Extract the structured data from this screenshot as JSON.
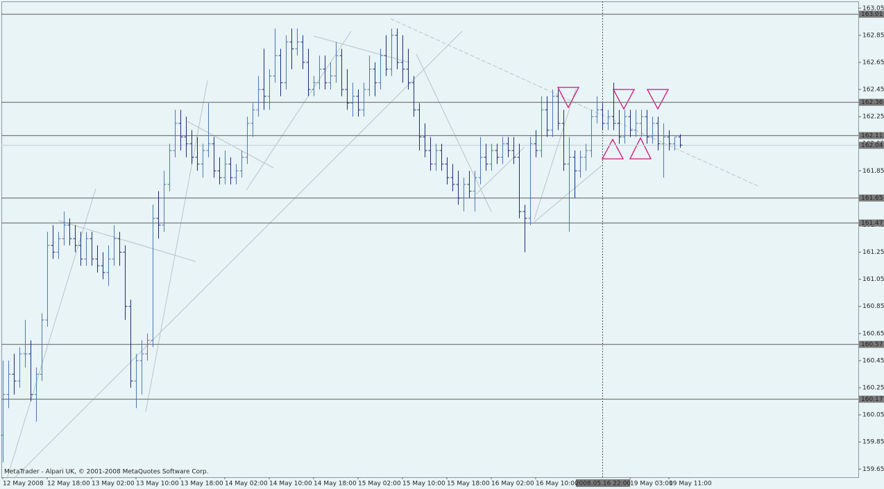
{
  "chart_data": {
    "type": "ohlc",
    "footer": "MetaTrader - Alpari UK, © 2001-2008 MetaQuotes Software Corp.",
    "categories": [
      "12 May 2008",
      null,
      null,
      null,
      null,
      null,
      null,
      null,
      "12 May 18:00",
      null,
      null,
      null,
      null,
      null,
      null,
      null,
      "13 May 02:00",
      null,
      null,
      null,
      null,
      null,
      null,
      null,
      "13 May 10:00",
      null,
      null,
      null,
      null,
      null,
      null,
      null,
      "13 May 18:00",
      null,
      null,
      null,
      null,
      null,
      null,
      null,
      "14 May 02:00",
      null,
      null,
      null,
      null,
      null,
      null,
      null,
      "14 May 10:00",
      null,
      null,
      null,
      null,
      null,
      null,
      null,
      "14 May 18:00",
      null,
      null,
      null,
      null,
      null,
      null,
      null,
      "15 May 02:00",
      null,
      null,
      null,
      null,
      null,
      null,
      null,
      "15 May 10:00",
      null,
      null,
      null,
      null,
      null,
      null,
      null,
      "15 May 18:00",
      null,
      null,
      null,
      null,
      null,
      null,
      null,
      "16 May 02:00",
      null,
      null,
      null,
      null,
      null,
      null,
      null,
      "16 May 10:00",
      null,
      null,
      null,
      null,
      null,
      null,
      null,
      null,
      null,
      null,
      null,
      "2008.05.16 22:00",
      null,
      null,
      null,
      null,
      "19 May 03:00",
      null,
      null,
      null,
      null,
      null,
      null,
      "19 May 11:00",
      null,
      null
    ],
    "highlight_category": "2008.05.16 22:00",
    "open": [
      159.9,
      160.2,
      160.35,
      160.3,
      160.5,
      160.5,
      160.2,
      160.35,
      160.75,
      161.3,
      161.25,
      161.35,
      161.45,
      161.35,
      161.3,
      161.2,
      161.35,
      161.2,
      161.15,
      161.1,
      161.2,
      161.35,
      161.25,
      160.85,
      160.3,
      160.45,
      160.5,
      160.6,
      161.5,
      161.45,
      161.75,
      162.0,
      162.2,
      162.1,
      162.05,
      161.95,
      161.9,
      162.0,
      162.05,
      161.85,
      161.8,
      161.9,
      161.8,
      161.85,
      161.95,
      162.2,
      162.3,
      162.45,
      162.4,
      162.55,
      162.7,
      162.5,
      162.8,
      162.75,
      162.8,
      162.65,
      162.45,
      162.5,
      162.6,
      162.5,
      162.55,
      162.7,
      162.45,
      162.35,
      162.4,
      162.3,
      162.45,
      162.6,
      162.5,
      162.7,
      162.6,
      162.85,
      162.65,
      162.6,
      162.5,
      162.3,
      162.1,
      162.0,
      161.9,
      162.0,
      161.9,
      161.8,
      161.75,
      161.65,
      161.75,
      161.7,
      161.8,
      161.95,
      161.9,
      162.0,
      161.95,
      162.05,
      162.0,
      161.95,
      161.55,
      161.5,
      162.05,
      162.0,
      162.3,
      162.15,
      162.4,
      162.2,
      161.9,
      161.95,
      161.85,
      161.95,
      162.0,
      162.25,
      162.3,
      162.2,
      162.25,
      162.2,
      162.1,
      162.25,
      162.15,
      162.2,
      162.25,
      162.1,
      162.2,
      162.05,
      162.1,
      162.05,
      162.1
    ],
    "high": [
      160.45,
      160.45,
      160.5,
      160.55,
      160.75,
      160.6,
      160.4,
      160.8,
      161.4,
      161.45,
      161.4,
      161.55,
      161.5,
      161.45,
      161.4,
      161.4,
      161.4,
      161.3,
      161.25,
      161.3,
      161.45,
      161.4,
      161.3,
      160.9,
      160.5,
      160.6,
      160.65,
      161.6,
      161.7,
      161.85,
      162.05,
      162.3,
      162.3,
      162.25,
      162.15,
      162.1,
      162.05,
      162.35,
      162.1,
      161.95,
      162.0,
      161.95,
      161.9,
      162.0,
      162.25,
      162.35,
      162.55,
      162.75,
      162.6,
      162.9,
      162.75,
      162.85,
      162.9,
      162.9,
      162.85,
      162.75,
      162.55,
      162.7,
      162.7,
      162.65,
      162.8,
      162.75,
      162.6,
      162.5,
      162.45,
      162.5,
      162.7,
      162.65,
      162.75,
      162.85,
      162.9,
      162.9,
      162.85,
      162.75,
      162.55,
      162.35,
      162.2,
      162.1,
      162.05,
      162.05,
      161.95,
      161.9,
      161.85,
      161.8,
      161.85,
      161.85,
      162.1,
      162.05,
      162.05,
      162.05,
      162.1,
      162.1,
      162.1,
      162.05,
      161.6,
      162.1,
      162.15,
      162.4,
      162.4,
      162.45,
      162.45,
      162.3,
      162.1,
      162.0,
      162.0,
      162.05,
      162.3,
      162.4,
      162.35,
      162.3,
      162.5,
      162.3,
      162.3,
      162.3,
      162.3,
      162.3,
      162.3,
      162.25,
      162.25,
      162.2,
      162.15,
      162.1,
      162.12
    ],
    "low": [
      159.7,
      160.1,
      160.2,
      160.25,
      160.4,
      160.15,
      160.0,
      160.3,
      160.7,
      161.2,
      161.2,
      161.3,
      161.3,
      161.25,
      161.15,
      161.15,
      161.15,
      161.1,
      161.05,
      161.0,
      161.15,
      161.15,
      160.75,
      160.25,
      160.1,
      160.2,
      160.45,
      160.55,
      161.35,
      161.4,
      161.7,
      161.95,
      162.0,
      161.95,
      161.9,
      161.85,
      161.8,
      161.95,
      161.8,
      161.75,
      161.75,
      161.75,
      161.75,
      161.8,
      161.9,
      162.1,
      162.25,
      162.3,
      162.3,
      162.5,
      162.4,
      162.45,
      162.6,
      162.7,
      162.6,
      162.4,
      162.4,
      162.45,
      162.45,
      162.45,
      162.5,
      162.4,
      162.3,
      162.25,
      162.25,
      162.25,
      162.4,
      162.4,
      162.45,
      162.55,
      162.55,
      162.6,
      162.5,
      162.45,
      162.25,
      162.0,
      161.95,
      161.85,
      161.85,
      161.85,
      161.75,
      161.7,
      161.6,
      161.55,
      161.65,
      161.55,
      161.75,
      161.85,
      161.85,
      161.9,
      161.9,
      161.95,
      161.9,
      161.5,
      161.25,
      161.45,
      161.95,
      161.95,
      162.1,
      162.1,
      162.15,
      161.85,
      161.4,
      161.65,
      161.8,
      161.85,
      161.95,
      162.2,
      162.15,
      162.15,
      162.15,
      162.05,
      162.05,
      162.1,
      162.1,
      162.1,
      162.05,
      162.05,
      162.0,
      161.8,
      162.0,
      162.0,
      162.02
    ],
    "close": [
      160.2,
      160.35,
      160.3,
      160.5,
      160.5,
      160.2,
      160.35,
      160.75,
      161.3,
      161.25,
      161.35,
      161.45,
      161.35,
      161.3,
      161.2,
      161.35,
      161.2,
      161.15,
      161.1,
      161.2,
      161.35,
      161.25,
      160.85,
      160.3,
      160.45,
      160.5,
      160.6,
      161.5,
      161.45,
      161.75,
      162.0,
      162.2,
      162.1,
      162.05,
      161.95,
      161.9,
      162.0,
      162.05,
      161.85,
      161.8,
      161.9,
      161.8,
      161.85,
      161.95,
      162.2,
      162.3,
      162.45,
      162.4,
      162.55,
      162.7,
      162.5,
      162.8,
      162.75,
      162.8,
      162.65,
      162.45,
      162.5,
      162.6,
      162.5,
      162.55,
      162.7,
      162.45,
      162.35,
      162.4,
      162.3,
      162.45,
      162.6,
      162.5,
      162.7,
      162.6,
      162.85,
      162.65,
      162.6,
      162.5,
      162.3,
      162.1,
      162.0,
      161.9,
      162.0,
      161.9,
      161.8,
      161.75,
      161.65,
      161.75,
      161.7,
      161.8,
      161.95,
      161.9,
      162.0,
      161.95,
      162.05,
      162.0,
      161.95,
      161.55,
      161.5,
      162.05,
      162.0,
      162.3,
      162.15,
      162.4,
      162.2,
      161.9,
      161.95,
      161.85,
      161.95,
      162.0,
      162.25,
      162.3,
      162.2,
      162.25,
      162.2,
      162.1,
      162.25,
      162.15,
      162.2,
      162.25,
      162.1,
      162.2,
      162.05,
      162.1,
      162.05,
      162.1,
      162.04
    ],
    "up_color": "#4a78b0",
    "down_color": "#1c2a78",
    "ylim": [
      159.59,
      163.1
    ],
    "yticks": [
      163.05,
      162.85,
      162.65,
      162.45,
      162.25,
      162.05,
      161.85,
      161.65,
      161.45,
      161.25,
      161.05,
      160.85,
      160.65,
      160.45,
      160.25,
      160.05,
      159.85,
      159.65
    ],
    "levels": [
      163.01,
      162.36,
      162.11,
      161.65,
      161.47,
      160.57,
      160.17
    ],
    "level_color": "#7a7a7a",
    "current_price": 162.04,
    "current_price_color": "#c9d6dc"
  }
}
